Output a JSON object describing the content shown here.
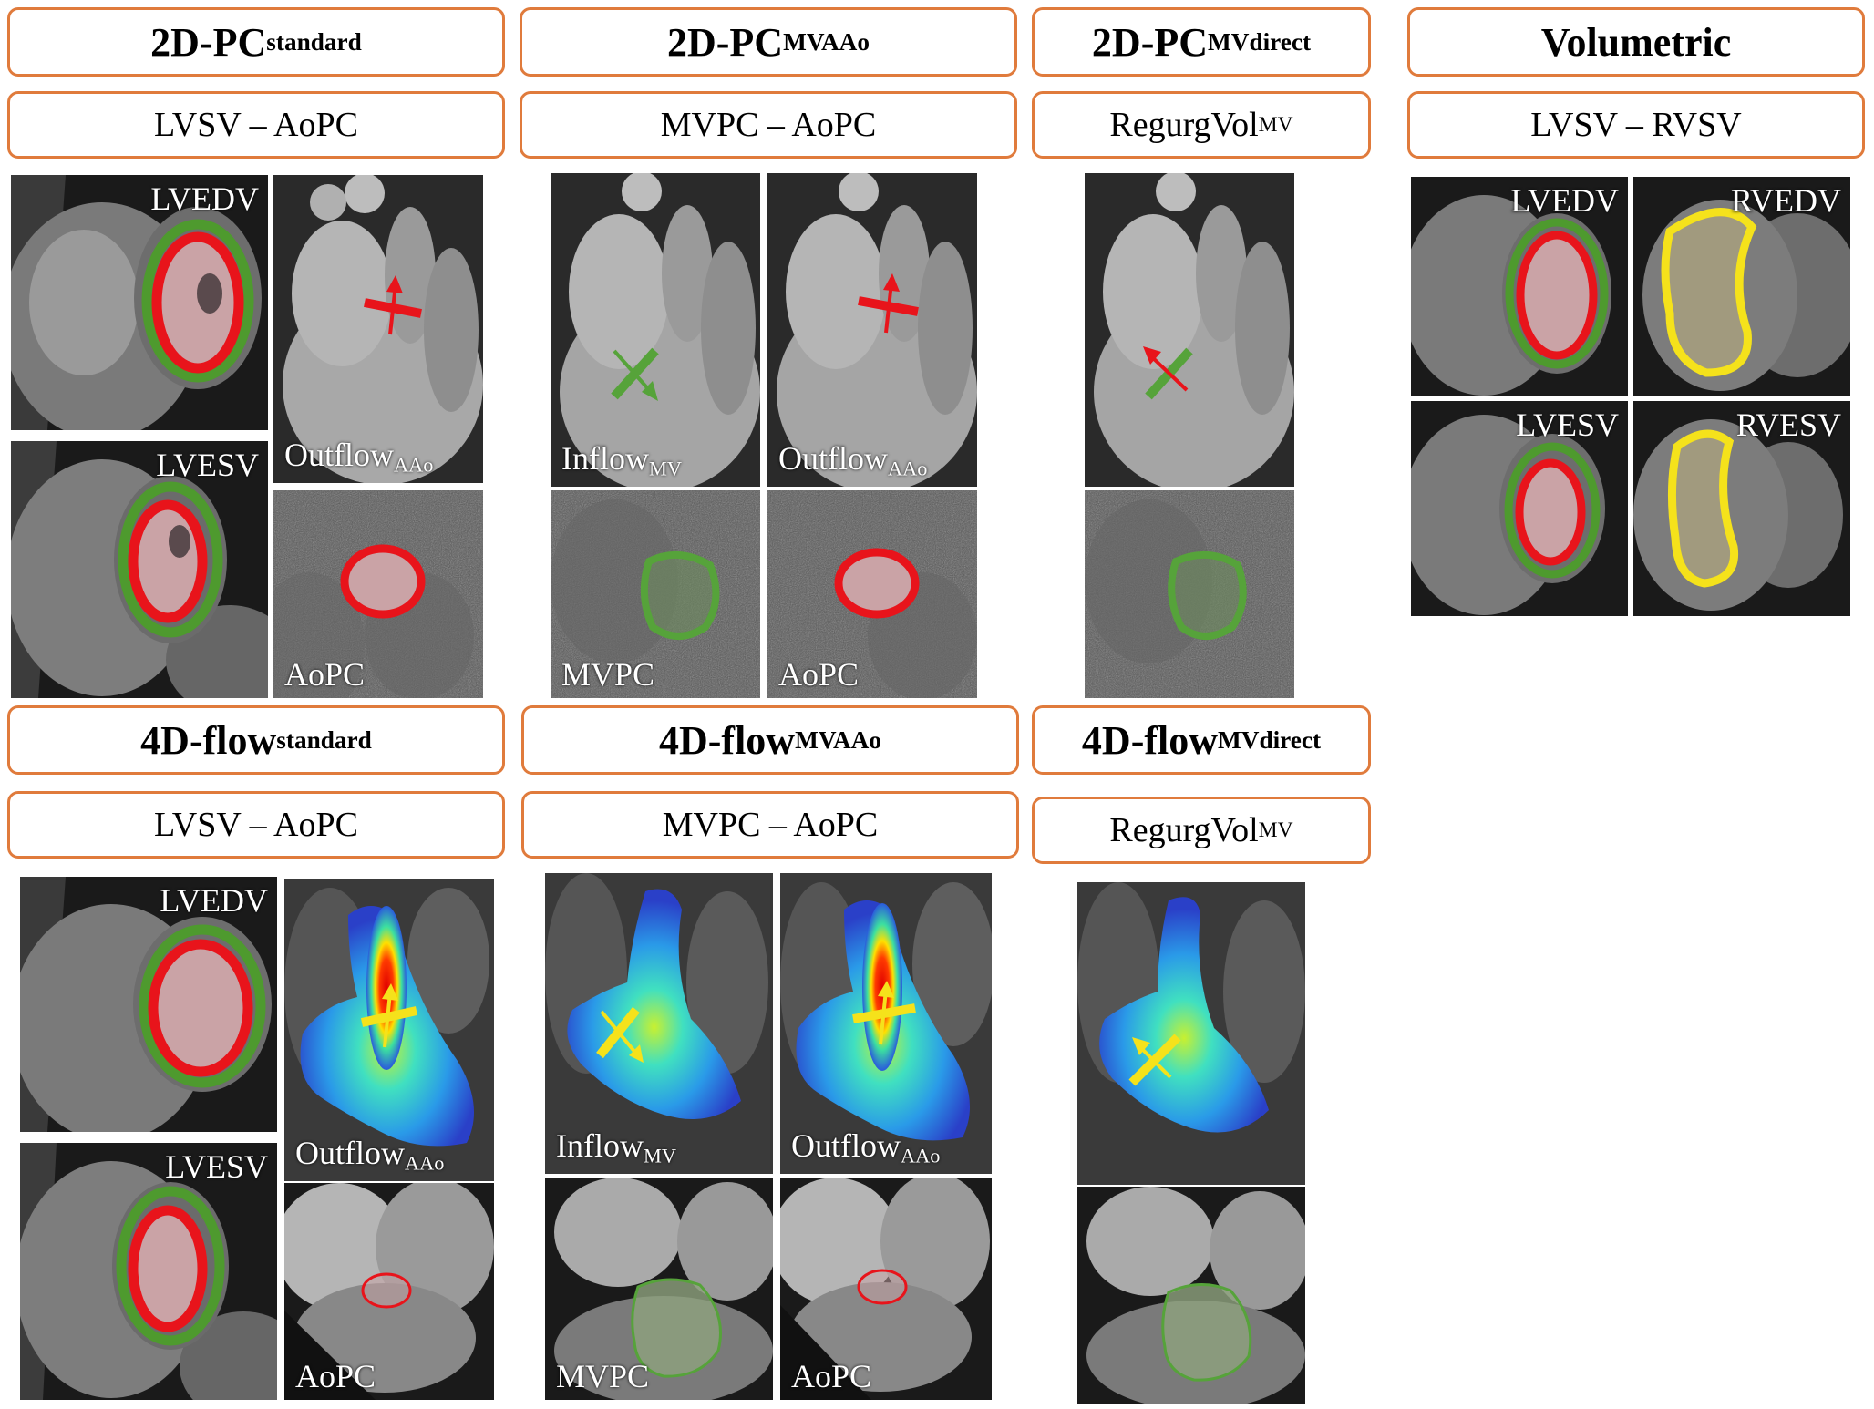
{
  "pc_row": {
    "groups": [
      {
        "title_main": "2D-PC",
        "title_sub": "standard",
        "formula_main": "LVSV – AoPC",
        "formula_sub": ""
      },
      {
        "title_main": "2D-PC",
        "title_sub": "MVAAo",
        "formula_main": "MVPC – AoPC",
        "formula_sub": ""
      },
      {
        "title_main": "2D-PC",
        "title_sub": "MVdirect",
        "formula_main": "RegurgVol",
        "formula_sub": "MV"
      },
      {
        "title_main": "Volumetric",
        "title_sub": "",
        "formula_main": "LVSV – RVSV",
        "formula_sub": ""
      }
    ]
  },
  "flow_row": {
    "groups": [
      {
        "title_main": "4D-flow",
        "title_sub": "standard",
        "formula_main": "LVSV – AoPC",
        "formula_sub": ""
      },
      {
        "title_main": "4D-flow",
        "title_sub": "MVAAo",
        "formula_main": "MVPC – AoPC",
        "formula_sub": ""
      },
      {
        "title_main": "4D-flow",
        "title_sub": "MVdirect",
        "formula_main": "RegurgVol",
        "formula_sub": "MV"
      }
    ]
  },
  "labels": {
    "lvedv": "LVEDV",
    "lvesv": "LVESV",
    "rvedv": "RVEDV",
    "rvesv": "RVESV",
    "outflow_main": "Outflow",
    "outflow_sub": "AAo",
    "inflow_main": "Inflow",
    "inflow_sub": "MV",
    "aopc": "AoPC",
    "mvpc": "MVPC"
  },
  "colors": {
    "box_border": "#e07b3c",
    "lv_endo": "#e8141b",
    "lv_epi": "#4e9a2e",
    "rv_contour": "#f5e21b",
    "arrow_red": "#e8141b",
    "arrow_green": "#56a33a",
    "arrow_yellow": "#f5e21b"
  }
}
